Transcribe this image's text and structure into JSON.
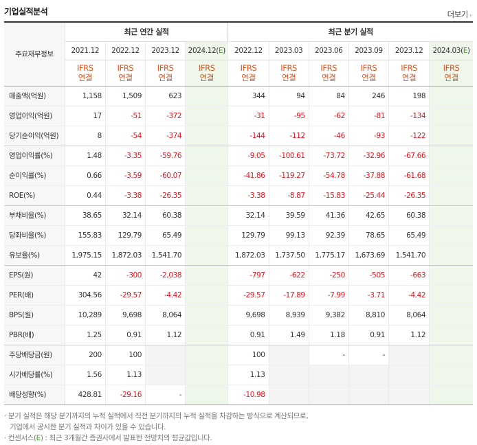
{
  "header": {
    "title": "기업실적분석",
    "more_label": "더보기"
  },
  "table": {
    "row_label_header": "주요재무정보",
    "annual_group": "최근 연간 실적",
    "quarter_group": "최근 분기 실적",
    "annual_periods": [
      "2021.12",
      "2022.12",
      "2023.12",
      "2024.12(E)"
    ],
    "quarter_periods": [
      "2022.12",
      "2023.03",
      "2023.06",
      "2023.09",
      "2023.12",
      "2024.03(E)"
    ],
    "ifrs_top": "IFRS",
    "ifrs_bottom": "연결",
    "rows": [
      {
        "label": "매출액(억원)",
        "values": [
          "1,158",
          "1,509",
          "623",
          "",
          "344",
          "94",
          "84",
          "246",
          "198",
          ""
        ]
      },
      {
        "label": "영업이익(억원)",
        "values": [
          "17",
          "-51",
          "-372",
          "",
          "-31",
          "-95",
          "-62",
          "-81",
          "-134",
          ""
        ]
      },
      {
        "label": "당기순이익(억원)",
        "values": [
          "8",
          "-54",
          "-374",
          "",
          "-144",
          "-112",
          "-46",
          "-93",
          "-122",
          ""
        ]
      },
      {
        "label": "영업이익률(%)",
        "values": [
          "1.48",
          "-3.35",
          "-59.76",
          "",
          "-9.05",
          "-100.61",
          "-73.72",
          "-32.96",
          "-67.66",
          ""
        ]
      },
      {
        "label": "순이익률(%)",
        "values": [
          "0.66",
          "-3.59",
          "-60.07",
          "",
          "-41.86",
          "-119.27",
          "-54.78",
          "-37.88",
          "-61.68",
          ""
        ]
      },
      {
        "label": "ROE(%)",
        "values": [
          "0.44",
          "-3.38",
          "-26.35",
          "",
          "-3.38",
          "-8.87",
          "-15.83",
          "-25.44",
          "-26.35",
          ""
        ]
      },
      {
        "label": "부채비율(%)",
        "values": [
          "38.65",
          "32.14",
          "60.38",
          "",
          "32.14",
          "39.59",
          "41.36",
          "42.65",
          "60.38",
          ""
        ]
      },
      {
        "label": "당좌비율(%)",
        "values": [
          "155.83",
          "129.79",
          "65.49",
          "",
          "129.79",
          "99.13",
          "92.39",
          "78.65",
          "65.49",
          ""
        ]
      },
      {
        "label": "유보율(%)",
        "values": [
          "1,975.15",
          "1,872.03",
          "1,541.70",
          "",
          "1,872.03",
          "1,737.50",
          "1,775.17",
          "1,673.69",
          "1,541.70",
          ""
        ]
      },
      {
        "label": "EPS(원)",
        "values": [
          "42",
          "-300",
          "-2,038",
          "",
          "-797",
          "-622",
          "-250",
          "-505",
          "-663",
          ""
        ]
      },
      {
        "label": "PER(배)",
        "values": [
          "304.56",
          "-29.57",
          "-4.42",
          "",
          "-29.57",
          "-17.89",
          "-7.99",
          "-3.71",
          "-4.42",
          ""
        ]
      },
      {
        "label": "BPS(원)",
        "values": [
          "10,289",
          "9,698",
          "8,064",
          "",
          "9,698",
          "8,939",
          "9,382",
          "8,810",
          "8,064",
          ""
        ]
      },
      {
        "label": "PBR(배)",
        "values": [
          "1.25",
          "0.91",
          "1.12",
          "",
          "0.91",
          "1.49",
          "1.18",
          "0.91",
          "1.12",
          ""
        ]
      },
      {
        "label": "주당배당금(원)",
        "values": [
          "200",
          "100",
          "",
          "",
          "100",
          "",
          "-",
          "-",
          "",
          ""
        ]
      },
      {
        "label": "시가배당률(%)",
        "values": [
          "1.56",
          "1.13",
          "",
          "",
          "1.13",
          "",
          "",
          "",
          "",
          ""
        ]
      },
      {
        "label": "배당성향(%)",
        "values": [
          "428.81",
          "-29.16",
          "-",
          "",
          "-10.98",
          "",
          "",
          "",
          "",
          ""
        ]
      }
    ]
  },
  "notes": {
    "line1": "분기 실적은 해당 분기까지의 누적 실적에서 직전 분기까지의 누적 실적을 차감하는 방식으로 계산되므로,",
    "line2": "기업에서 공시한 분기 실적과 차이가 있을 수 있습니다.",
    "line3_prefix": "컨센서스(",
    "line3_e": "E",
    "line3_suffix": ") : 최근 3개월간 증권사에서 발표한 전망치의 평균값입니다."
  },
  "colors": {
    "negative": "#e0141e",
    "ifrs": "#e0541e",
    "estimate_bg": "#eef7ea"
  }
}
